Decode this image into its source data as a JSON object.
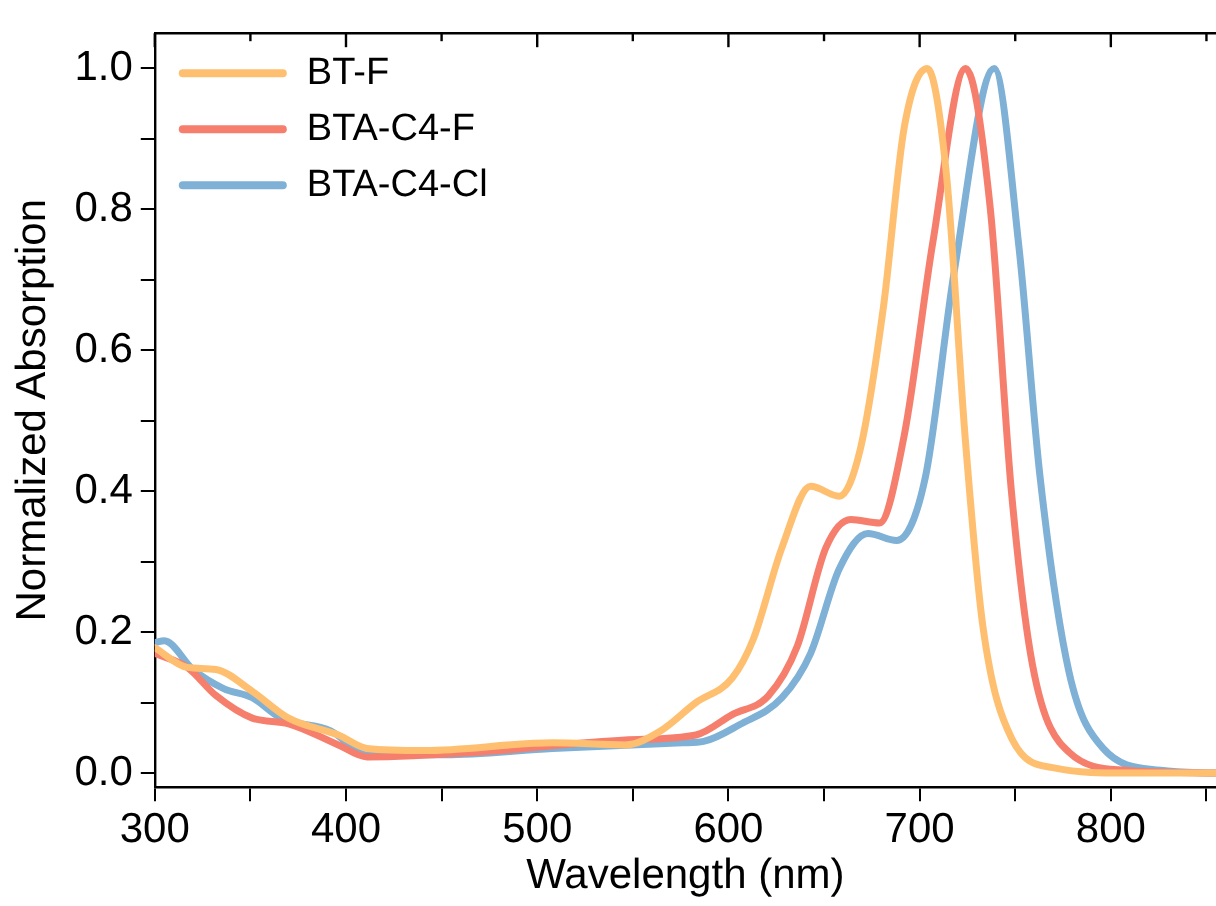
{
  "chart_data": {
    "type": "line",
    "xlabel": "Wavelength (nm)",
    "ylabel": "Normalized Absorption",
    "xlim": [
      300,
      855
    ],
    "ylim": [
      -0.02,
      1.05
    ],
    "xticks": [
      300,
      {
        "value": 350,
        "label": null
      },
      400,
      {
        "value": 450,
        "label": null
      },
      500,
      {
        "value": 550,
        "label": null
      },
      600,
      {
        "value": 650,
        "label": null
      },
      700,
      {
        "value": 750,
        "label": null
      },
      800,
      {
        "value": 850,
        "label": null
      }
    ],
    "yticks": [
      {
        "value": 0,
        "label": "0.0"
      },
      {
        "value": 0.1,
        "label": null
      },
      0.2,
      {
        "value": 0.3,
        "label": null
      },
      0.4,
      {
        "value": 0.5,
        "label": null
      },
      0.6,
      {
        "value": 0.7,
        "label": null
      },
      0.8,
      {
        "value": 0.9,
        "label": null
      },
      {
        "value": 1,
        "label": "1.0"
      }
    ],
    "grid": false,
    "legend": "top left",
    "marker": "none",
    "line_style": "solid",
    "series": [
      {
        "name": "BT-F",
        "color": "#ffbf70",
        "x": [
          300,
          317,
          332,
          351,
          370,
          396,
          411,
          441,
          508,
          546,
          564,
          583,
          602,
          613,
          628,
          643,
          658,
          669,
          681,
          692,
          704,
          714,
          724,
          733,
          748,
          771,
          808,
          855
        ],
        "values": [
          0.178,
          0.15,
          0.147,
          0.116,
          0.078,
          0.054,
          0.035,
          0.032,
          0.043,
          0.04,
          0.059,
          0.1,
          0.135,
          0.19,
          0.32,
          0.407,
          0.393,
          0.46,
          0.66,
          0.917,
          1.0,
          0.85,
          0.47,
          0.21,
          0.05,
          0.007,
          0,
          0
        ]
      },
      {
        "name": "BTA-C4-F",
        "color": "#f57f6c",
        "x": [
          300,
          317,
          332,
          351,
          370,
          396,
          411,
          471,
          546,
          583,
          602,
          621,
          636,
          651,
          664,
          679,
          692,
          707,
          724,
          737,
          748,
          759,
          778,
          808,
          855
        ],
        "values": [
          0.17,
          0.15,
          0.11,
          0.078,
          0.07,
          0.04,
          0.023,
          0.03,
          0.047,
          0.054,
          0.083,
          0.11,
          0.18,
          0.32,
          0.36,
          0.355,
          0.48,
          0.755,
          1.0,
          0.8,
          0.4,
          0.154,
          0.03,
          0.004,
          0
        ]
      },
      {
        "name": "BTA-C4-Cl",
        "color": "#7fb0d5",
        "x": [
          300,
          305,
          320,
          336,
          351,
          366,
          392,
          411,
          452,
          508,
          576,
          587,
          606,
          628,
          643,
          658,
          673,
          688,
          703,
          718,
          739,
          752,
          763,
          778,
          796,
          826,
          855
        ],
        "values": [
          0.185,
          0.188,
          0.147,
          0.12,
          0.107,
          0.078,
          0.06,
          0.026,
          0.026,
          0.035,
          0.043,
          0.045,
          0.069,
          0.107,
          0.17,
          0.29,
          0.34,
          0.33,
          0.42,
          0.71,
          1.0,
          0.745,
          0.42,
          0.145,
          0.035,
          0.004,
          0
        ]
      }
    ]
  }
}
